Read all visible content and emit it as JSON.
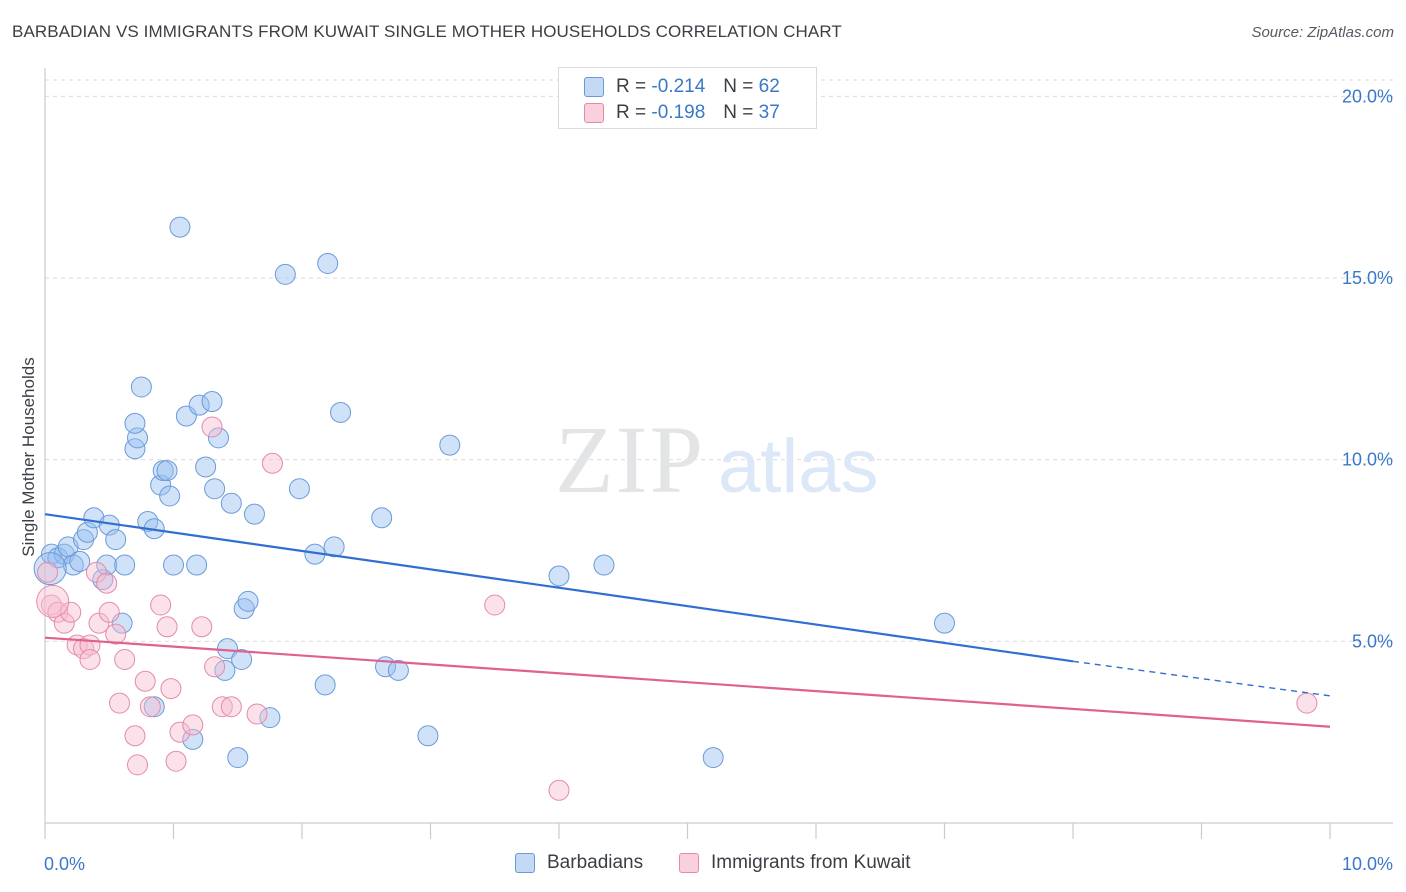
{
  "title": "BARBADIAN VS IMMIGRANTS FROM KUWAIT SINGLE MOTHER HOUSEHOLDS CORRELATION CHART",
  "source": "Source: ZipAtlas.com",
  "watermark": {
    "zip": "ZIP",
    "atlas": "atlas"
  },
  "legend": {
    "rows": [
      {
        "r_label": "R =",
        "r_value": "-0.214",
        "n_label": "N =",
        "n_value": "62",
        "color": "#a9c8f0",
        "border": "#6a9ad8"
      },
      {
        "r_label": "R =",
        "r_value": "-0.198",
        "n_label": "N =",
        "n_value": "37",
        "color": "#f6bcd0",
        "border": "#e58aa9"
      }
    ]
  },
  "bottom_legend": [
    {
      "label": "Barbadians",
      "color": "#a9c8f0",
      "border": "#6a9ad8"
    },
    {
      "label": "Immigrants from Kuwait",
      "color": "#f6bcd0",
      "border": "#e58aa9"
    }
  ],
  "chart_data": {
    "type": "scatter",
    "title": "BARBADIAN VS IMMIGRANTS FROM KUWAIT SINGLE MOTHER HOUSEHOLDS CORRELATION CHART",
    "xlabel": "",
    "ylabel": "Single Mother Households",
    "xlim": [
      0,
      10
    ],
    "ylim": [
      0,
      20
    ],
    "x_ticks": [
      "0.0%",
      "10.0%"
    ],
    "y_ticks": [
      "5.0%",
      "10.0%",
      "15.0%",
      "20.0%"
    ],
    "y_tick_values": [
      5,
      10,
      15,
      20
    ],
    "grid": "horizontal dashed",
    "legend_position": "top-center",
    "series": [
      {
        "name": "Barbadians",
        "color": "#6a9ad8",
        "fill": "rgba(150,190,240,0.45)",
        "trend": {
          "x0": 0,
          "y0": 8.5,
          "x1": 8.0,
          "y1": 4.45,
          "dash_to_x": 10.0,
          "dash_to_y": 3.5,
          "color": "#2f6fd0"
        },
        "points": [
          [
            0.05,
            7.4
          ],
          [
            0.1,
            7.3
          ],
          [
            0.15,
            7.4
          ],
          [
            0.18,
            7.6
          ],
          [
            0.22,
            7.1
          ],
          [
            0.27,
            7.2
          ],
          [
            0.3,
            7.8
          ],
          [
            0.33,
            8.0
          ],
          [
            0.38,
            8.4
          ],
          [
            0.45,
            6.7
          ],
          [
            0.48,
            7.1
          ],
          [
            0.5,
            8.2
          ],
          [
            0.55,
            7.8
          ],
          [
            0.6,
            5.5
          ],
          [
            0.62,
            7.1
          ],
          [
            0.7,
            10.3
          ],
          [
            0.72,
            10.6
          ],
          [
            0.7,
            11.0
          ],
          [
            0.75,
            12.0
          ],
          [
            0.8,
            8.3
          ],
          [
            0.85,
            8.1
          ],
          [
            0.85,
            3.2
          ],
          [
            0.9,
            9.3
          ],
          [
            0.92,
            9.7
          ],
          [
            0.95,
            9.7
          ],
          [
            0.97,
            9.0
          ],
          [
            1.0,
            7.1
          ],
          [
            1.05,
            16.4
          ],
          [
            1.1,
            11.2
          ],
          [
            1.15,
            2.3
          ],
          [
            1.18,
            7.1
          ],
          [
            1.2,
            11.5
          ],
          [
            1.25,
            9.8
          ],
          [
            1.3,
            11.6
          ],
          [
            1.32,
            9.2
          ],
          [
            1.35,
            10.6
          ],
          [
            1.4,
            4.2
          ],
          [
            1.42,
            4.8
          ],
          [
            1.45,
            8.8
          ],
          [
            1.5,
            1.8
          ],
          [
            1.53,
            4.5
          ],
          [
            1.55,
            5.9
          ],
          [
            1.58,
            6.1
          ],
          [
            1.63,
            8.5
          ],
          [
            1.75,
            2.9
          ],
          [
            1.87,
            15.1
          ],
          [
            1.98,
            9.2
          ],
          [
            2.1,
            7.4
          ],
          [
            2.18,
            3.8
          ],
          [
            2.2,
            15.4
          ],
          [
            2.25,
            7.6
          ],
          [
            2.3,
            11.3
          ],
          [
            2.62,
            8.4
          ],
          [
            2.65,
            4.3
          ],
          [
            2.75,
            4.2
          ],
          [
            2.98,
            2.4
          ],
          [
            3.15,
            10.4
          ],
          [
            4.0,
            6.8
          ],
          [
            4.35,
            7.1
          ],
          [
            5.2,
            1.8
          ],
          [
            7.0,
            5.5
          ],
          [
            0.04,
            7.0
          ]
        ],
        "radius": 10
      },
      {
        "name": "Immigrants from Kuwait",
        "color": "#e58aa9",
        "fill": "rgba(246,188,208,0.45)",
        "trend": {
          "x0": 0,
          "y0": 5.1,
          "x1": 10.0,
          "y1": 2.65,
          "color": "#e06090"
        },
        "points": [
          [
            0.02,
            6.9
          ],
          [
            0.05,
            6.0
          ],
          [
            0.1,
            5.8
          ],
          [
            0.15,
            5.5
          ],
          [
            0.2,
            5.8
          ],
          [
            0.25,
            4.9
          ],
          [
            0.3,
            4.8
          ],
          [
            0.35,
            4.9
          ],
          [
            0.35,
            4.5
          ],
          [
            0.4,
            6.9
          ],
          [
            0.42,
            5.5
          ],
          [
            0.48,
            6.6
          ],
          [
            0.5,
            5.8
          ],
          [
            0.55,
            5.2
          ],
          [
            0.58,
            3.3
          ],
          [
            0.62,
            4.5
          ],
          [
            0.7,
            2.4
          ],
          [
            0.72,
            1.6
          ],
          [
            0.78,
            3.9
          ],
          [
            0.82,
            3.2
          ],
          [
            0.9,
            6.0
          ],
          [
            0.95,
            5.4
          ],
          [
            0.98,
            3.7
          ],
          [
            1.02,
            1.7
          ],
          [
            1.05,
            2.5
          ],
          [
            1.15,
            2.7
          ],
          [
            1.22,
            5.4
          ],
          [
            1.3,
            10.9
          ],
          [
            1.32,
            4.3
          ],
          [
            1.38,
            3.2
          ],
          [
            1.45,
            3.2
          ],
          [
            1.65,
            3.0
          ],
          [
            1.77,
            9.9
          ],
          [
            3.5,
            6.0
          ],
          [
            4.0,
            0.9
          ],
          [
            9.82,
            3.3
          ],
          [
            0.06,
            6.1
          ]
        ],
        "radius": 10
      }
    ]
  }
}
